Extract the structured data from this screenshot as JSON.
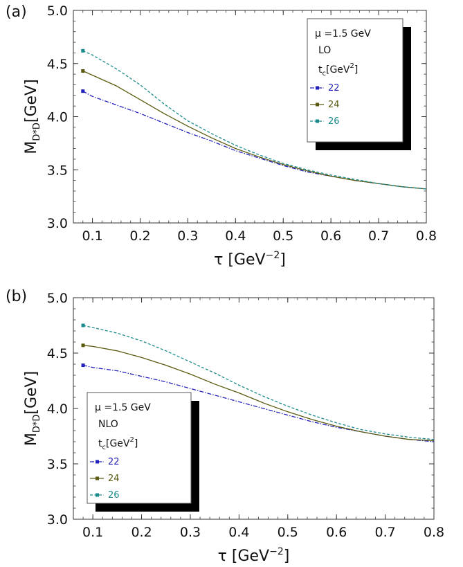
{
  "chart_data": [
    {
      "type": "line",
      "panel_label": "(a)",
      "xlabel": "τ [GeV−2]",
      "xlabel_main": "τ [GeV",
      "xlabel_sup": "−2",
      "xlabel_close": "]",
      "ylabel_main": "M",
      "ylabel_sub": "D*D",
      "ylabel_unit": "[GeV]",
      "xlim": [
        0.06,
        0.8
      ],
      "ylim": [
        3.0,
        5.0
      ],
      "xticks": [
        "0.1",
        "0.2",
        "0.3",
        "0.4",
        "0.5",
        "0.6",
        "0.7",
        "0.8"
      ],
      "yticks": [
        "3.0",
        "3.5",
        "4.0",
        "4.5",
        "5.0"
      ],
      "legend": {
        "placement": "top-right",
        "line1": "μ =1.5 GeV",
        "line2": "LO",
        "line3_main": "t",
        "line3_sub": "c",
        "line3_rest": "[GeV",
        "line3_sup": "2",
        "line3_close": "]"
      },
      "series": [
        {
          "name": "22",
          "color": "#2222bb",
          "style": "dashdot",
          "x": [
            0.08,
            0.1,
            0.15,
            0.2,
            0.25,
            0.3,
            0.35,
            0.4,
            0.45,
            0.5,
            0.55,
            0.6,
            0.65,
            0.7,
            0.75,
            0.8
          ],
          "y": [
            4.24,
            4.19,
            4.11,
            4.03,
            3.94,
            3.85,
            3.77,
            3.68,
            3.61,
            3.54,
            3.48,
            3.44,
            3.4,
            3.37,
            3.34,
            3.32
          ]
        },
        {
          "name": "24",
          "color": "#5a5a10",
          "style": "solid",
          "x": [
            0.08,
            0.1,
            0.15,
            0.2,
            0.25,
            0.3,
            0.35,
            0.4,
            0.45,
            0.5,
            0.55,
            0.6,
            0.65,
            0.7,
            0.75,
            0.8
          ],
          "y": [
            4.43,
            4.39,
            4.29,
            4.16,
            4.03,
            3.91,
            3.8,
            3.7,
            3.62,
            3.55,
            3.49,
            3.44,
            3.4,
            3.37,
            3.34,
            3.32
          ]
        },
        {
          "name": "26",
          "color": "#1a8a8a",
          "style": "dashed",
          "x": [
            0.08,
            0.1,
            0.15,
            0.2,
            0.25,
            0.3,
            0.35,
            0.4,
            0.45,
            0.5,
            0.55,
            0.6,
            0.65,
            0.7,
            0.75,
            0.8
          ],
          "y": [
            4.62,
            4.58,
            4.45,
            4.3,
            4.12,
            3.96,
            3.84,
            3.73,
            3.64,
            3.56,
            3.5,
            3.45,
            3.41,
            3.37,
            3.34,
            3.32
          ]
        }
      ]
    },
    {
      "type": "line",
      "panel_label": "(b)",
      "xlabel": "τ [GeV−2]",
      "xlabel_main": "τ [GeV",
      "xlabel_sup": "−2",
      "xlabel_close": "]",
      "ylabel_main": "M",
      "ylabel_sub": "D*D",
      "ylabel_unit": "[GeV]",
      "xlim": [
        0.06,
        0.8
      ],
      "ylim": [
        3.0,
        5.0
      ],
      "xticks": [
        "0.1",
        "0.2",
        "0.3",
        "0.4",
        "0.5",
        "0.6",
        "0.7",
        "0.8"
      ],
      "yticks": [
        "3.0",
        "3.5",
        "4.0",
        "4.5",
        "5.0"
      ],
      "legend": {
        "placement": "bottom-left",
        "line1": "μ =1.5 GeV",
        "line2": "NLO",
        "line3_main": "t",
        "line3_sub": "c",
        "line3_rest": "[GeV",
        "line3_sup": "2",
        "line3_close": "]"
      },
      "series": [
        {
          "name": "22",
          "color": "#2222bb",
          "style": "dashdot",
          "x": [
            0.08,
            0.1,
            0.15,
            0.2,
            0.25,
            0.3,
            0.35,
            0.4,
            0.45,
            0.5,
            0.55,
            0.6,
            0.65,
            0.7,
            0.75,
            0.8
          ],
          "y": [
            4.39,
            4.37,
            4.34,
            4.29,
            4.24,
            4.18,
            4.12,
            4.06,
            4.0,
            3.94,
            3.88,
            3.83,
            3.79,
            3.75,
            3.72,
            3.7
          ]
        },
        {
          "name": "24",
          "color": "#5a5a10",
          "style": "solid",
          "x": [
            0.08,
            0.1,
            0.15,
            0.2,
            0.25,
            0.3,
            0.35,
            0.4,
            0.45,
            0.5,
            0.55,
            0.6,
            0.65,
            0.7,
            0.75,
            0.8
          ],
          "y": [
            4.57,
            4.56,
            4.52,
            4.46,
            4.39,
            4.31,
            4.22,
            4.14,
            4.05,
            3.97,
            3.9,
            3.84,
            3.79,
            3.75,
            3.72,
            3.71
          ]
        },
        {
          "name": "26",
          "color": "#1a8a8a",
          "style": "dashed",
          "x": [
            0.08,
            0.1,
            0.15,
            0.2,
            0.25,
            0.3,
            0.35,
            0.4,
            0.45,
            0.5,
            0.55,
            0.6,
            0.65,
            0.7,
            0.75,
            0.8
          ],
          "y": [
            4.75,
            4.73,
            4.68,
            4.61,
            4.52,
            4.42,
            4.32,
            4.21,
            4.11,
            4.02,
            3.94,
            3.87,
            3.81,
            3.77,
            3.74,
            3.72
          ]
        }
      ]
    }
  ]
}
